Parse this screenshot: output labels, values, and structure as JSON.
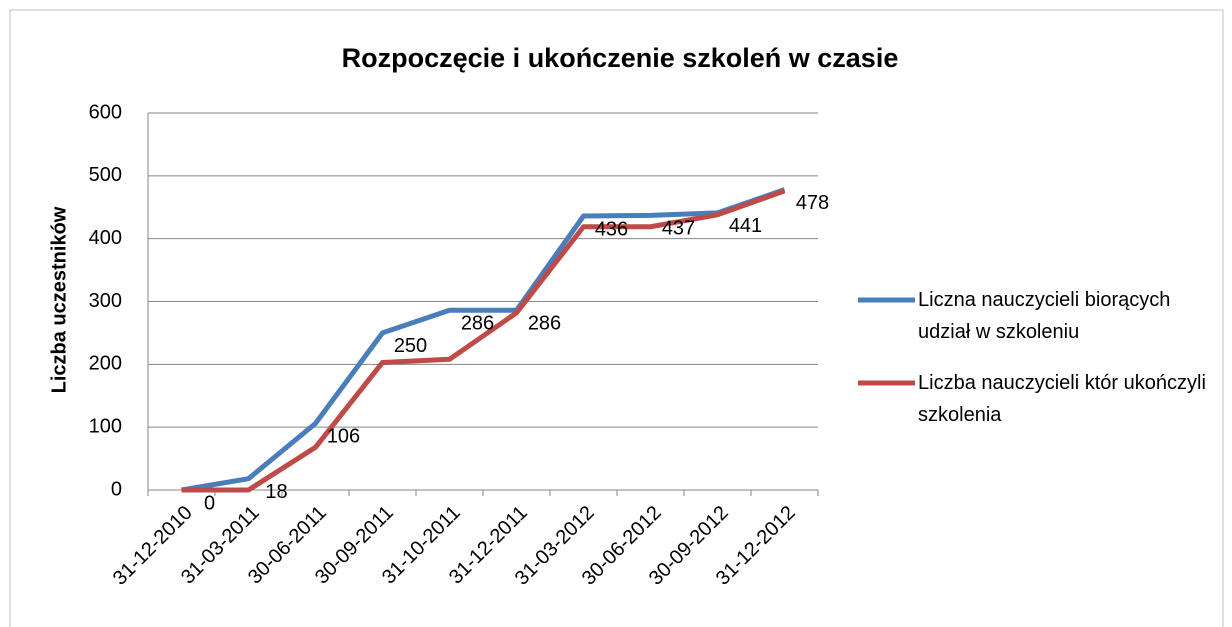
{
  "chart_data": {
    "type": "line",
    "title": "Rozpoczęcie i ukończenie szkoleń w czasie",
    "y_label": "Liczba uczestników",
    "categories": [
      "31-12-2010",
      "31-03-2011",
      "30-06-2011",
      "30-09-2011",
      "31-10-2011",
      "31-12-2011",
      "31-03-2012",
      "30-06-2012",
      "30-09-2012",
      "31-12-2012"
    ],
    "series": [
      {
        "name": "Liczna nauczycieli biorących udział w szkoleniu",
        "color": "#4a7ebb",
        "values": [
          0,
          18,
          106,
          250,
          286,
          286,
          436,
          437,
          441,
          478
        ],
        "show_labels": true
      },
      {
        "name": "Liczba nauczycieli któr ukończyli szkolenia",
        "color": "#be4b48",
        "values": [
          0,
          0,
          68,
          203,
          208,
          282,
          419,
          419,
          438,
          476
        ],
        "show_labels": false
      }
    ],
    "ylim": [
      0,
      600
    ],
    "yticks": [
      0,
      100,
      200,
      300,
      400,
      500,
      600
    ],
    "grid": true,
    "legend": "right"
  }
}
